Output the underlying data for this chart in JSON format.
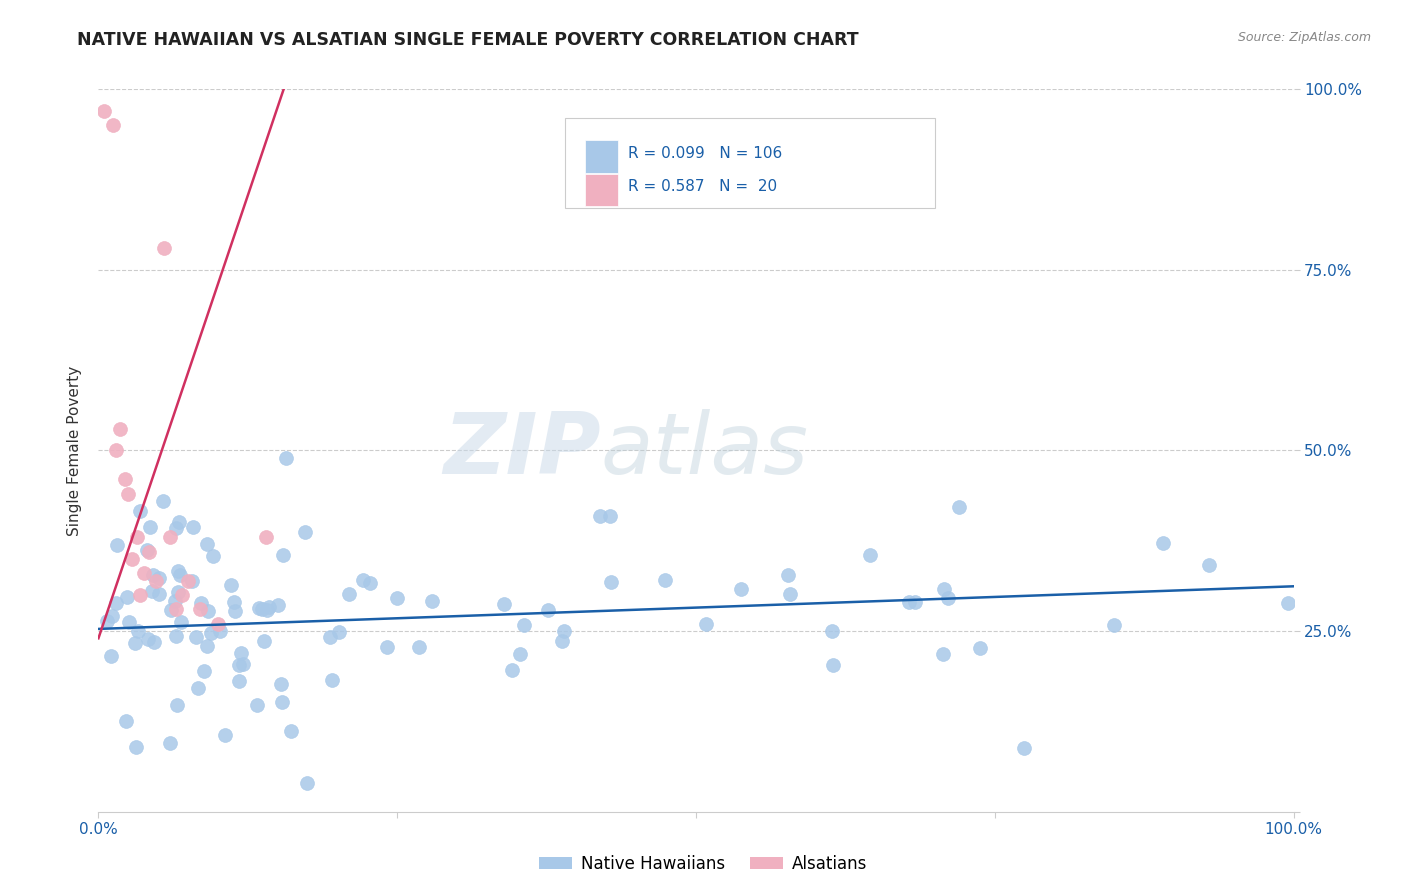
{
  "title": "NATIVE HAWAIIAN VS ALSATIAN SINGLE FEMALE POVERTY CORRELATION CHART",
  "source": "Source: ZipAtlas.com",
  "ylabel": "Single Female Poverty",
  "xlim": [
    0.0,
    1.0
  ],
  "ylim": [
    0.0,
    1.0
  ],
  "xtick_vals": [
    0.0,
    0.25,
    0.5,
    0.75,
    1.0
  ],
  "xticklabels": [
    "0.0%",
    "",
    "",
    "",
    "100.0%"
  ],
  "ytick_vals": [
    0.0,
    0.25,
    0.5,
    0.75,
    1.0
  ],
  "right_yticklabels": [
    "",
    "25.0%",
    "50.0%",
    "75.0%",
    "100.0%"
  ],
  "blue_R": 0.099,
  "blue_N": 106,
  "pink_R": 0.587,
  "pink_N": 20,
  "blue_scatter_color": "#a8c8e8",
  "pink_scatter_color": "#f0b0c0",
  "blue_line_color": "#1a5fa8",
  "pink_line_color": "#d03060",
  "legend_blue_color": "#a8c8e8",
  "legend_pink_color": "#f0b0c0",
  "legend_text_color": "#1a5fa8",
  "watermark_color": "#d0dde8",
  "background_color": "#ffffff",
  "grid_color": "#cccccc",
  "title_color": "#222222",
  "axis_label_color": "#333333",
  "right_tick_color": "#1a5fa8",
  "bottom_tick_color": "#1a5fa8",
  "legend_blue_label": "Native Hawaiians",
  "legend_pink_label": "Alsatians",
  "blue_line_x_start": 0.0,
  "blue_line_x_end": 1.0,
  "blue_line_y_start": 0.253,
  "blue_line_y_end": 0.312,
  "pink_line_x_start": 0.0,
  "pink_line_x_end": 0.155,
  "pink_line_y_start": 0.24,
  "pink_line_y_end": 1.0,
  "scatter_size": 100
}
